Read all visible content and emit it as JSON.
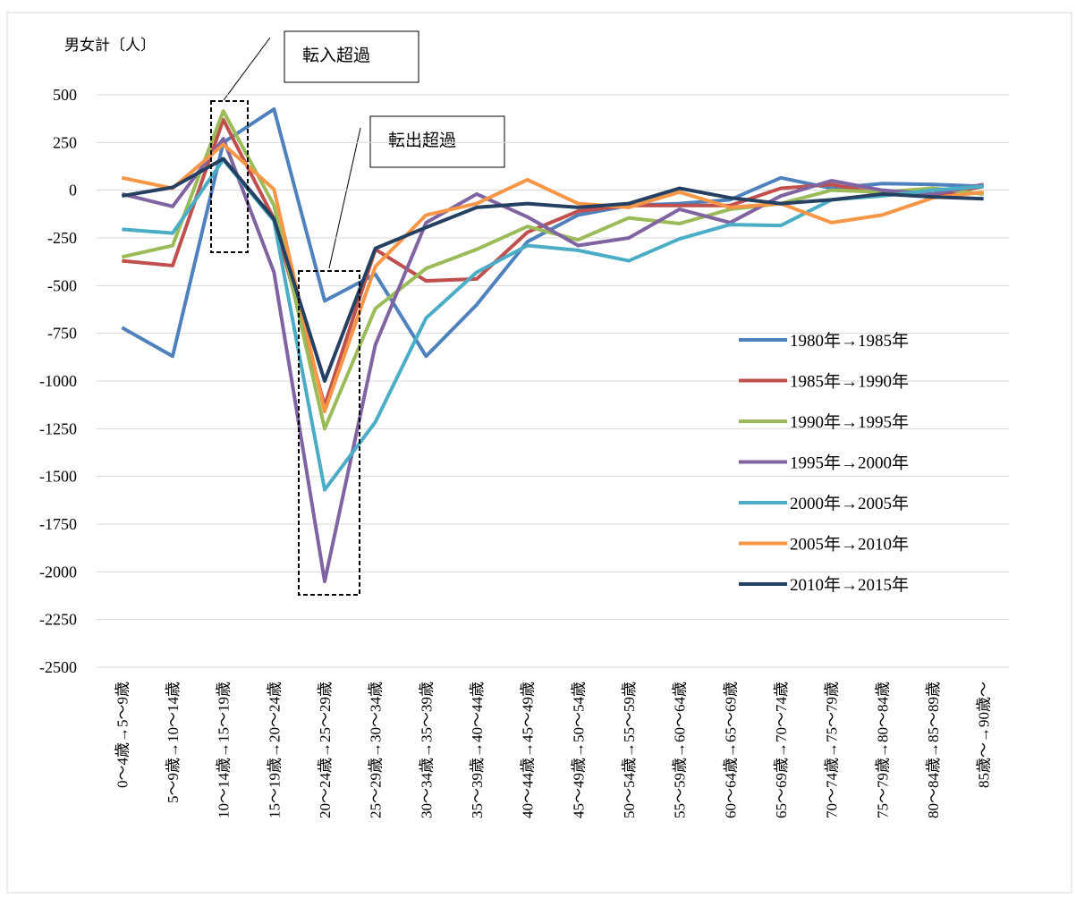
{
  "chart_data": {
    "type": "line",
    "y_label": "男女計〔人〕",
    "annotations": [
      "転入超過",
      "転出超過"
    ],
    "categories": [
      "0～4歳→5～9歳",
      "5～9歳→10～14歳",
      "10～14歳→15～19歳",
      "15～19歳→20～24歳",
      "20～24歳→25～29歳",
      "25～29歳→30～34歳",
      "30～34歳→35～39歳",
      "35～39歳→40～44歳",
      "40～44歳→45～49歳",
      "45～49歳→50～54歳",
      "50～54歳→55～59歳",
      "55～59歳→60～64歳",
      "60～64歳→65～69歳",
      "65～69歳→70～74歳",
      "70～74歳→75～79歳",
      "75～79歳→80～84歳",
      "80～84歳→85～89歳",
      "85歳～→90歳～"
    ],
    "series": [
      {
        "name": "1980年→1985年",
        "color": "#4f81bd",
        "values": [
          -720,
          -870,
          250,
          425,
          -580,
          -440,
          -870,
          -600,
          -270,
          -130,
          -80,
          -70,
          -50,
          65,
          10,
          35,
          30,
          20
        ]
      },
      {
        "name": "1985年→1990年",
        "color": "#c0504d",
        "values": [
          -370,
          -395,
          370,
          -150,
          -1130,
          -310,
          -475,
          -465,
          -220,
          -110,
          -80,
          -80,
          -80,
          10,
          30,
          -20,
          -30,
          20
        ]
      },
      {
        "name": "1990年→1995年",
        "color": "#9bbb59",
        "values": [
          -350,
          -290,
          415,
          -80,
          -1250,
          -620,
          -410,
          -310,
          -190,
          -260,
          -145,
          -175,
          -100,
          -70,
          0,
          -10,
          10,
          -20
        ]
      },
      {
        "name": "1995年→2000年",
        "color": "#8064a2",
        "values": [
          -20,
          -85,
          270,
          -430,
          -2050,
          -810,
          -170,
          -20,
          -140,
          -290,
          -250,
          -100,
          -170,
          -30,
          50,
          0,
          -20,
          30
        ]
      },
      {
        "name": "2000年→2005年",
        "color": "#4bacc6",
        "values": [
          -205,
          -225,
          160,
          -160,
          -1570,
          -1215,
          -670,
          -430,
          -290,
          -315,
          -370,
          -255,
          -180,
          -185,
          -50,
          -30,
          0,
          20
        ]
      },
      {
        "name": "2005年→2010年",
        "color": "#f79646",
        "values": [
          65,
          10,
          240,
          5,
          -1160,
          -400,
          -130,
          -70,
          55,
          -70,
          -90,
          -10,
          -90,
          -70,
          -170,
          -130,
          -40,
          -10
        ]
      },
      {
        "name": "2010年→2015年",
        "color": "#254061",
        "values": [
          -30,
          15,
          165,
          -150,
          -1000,
          -305,
          -195,
          -90,
          -70,
          -90,
          -70,
          10,
          -40,
          -70,
          -50,
          -20,
          -35,
          -45
        ]
      }
    ],
    "ylim": [
      -2500,
      500
    ],
    "yticks": [
      500,
      250,
      0,
      -250,
      -500,
      -750,
      -1000,
      -1250,
      -1500,
      -1750,
      -2000,
      -2250,
      -2500
    ],
    "grid": true
  }
}
